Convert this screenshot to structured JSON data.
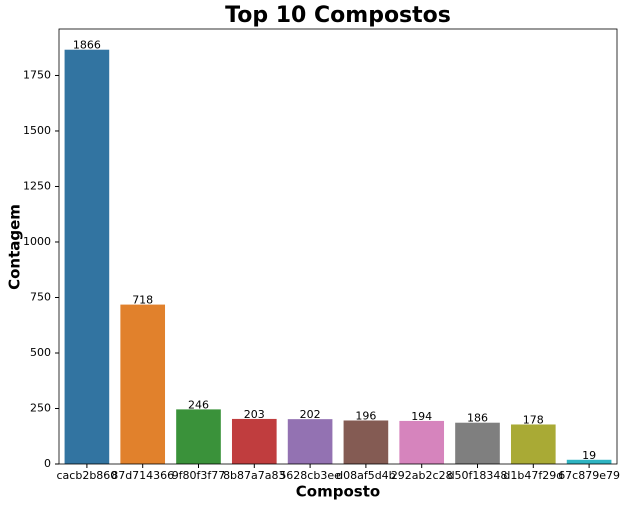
{
  "chart_data": {
    "type": "bar",
    "title": "Top 10 Compostos",
    "x_label": "Composto",
    "y_label": "Contagem",
    "categories": [
      "cacb2b860",
      "87d714366",
      "9f80f3f77",
      "8b87a7a83",
      "5628cb3ee",
      "d08af5d4b",
      "292ab2c28",
      "d50f18348",
      "d1b47f29d",
      "67c879e79"
    ],
    "values": [
      1866,
      718,
      246,
      203,
      202,
      196,
      194,
      186,
      178,
      19
    ],
    "colors": [
      "#3274a1",
      "#e1812c",
      "#3a923a",
      "#c03d3e",
      "#9372b2",
      "#845b53",
      "#d684bd",
      "#7f7f7f",
      "#a9aa35",
      "#2eb4c2"
    ],
    "ylim": [
      0,
      1959.3
    ],
    "yticks": [
      0,
      250,
      500,
      750,
      1000,
      1250,
      1500,
      1750
    ],
    "grid": false
  }
}
